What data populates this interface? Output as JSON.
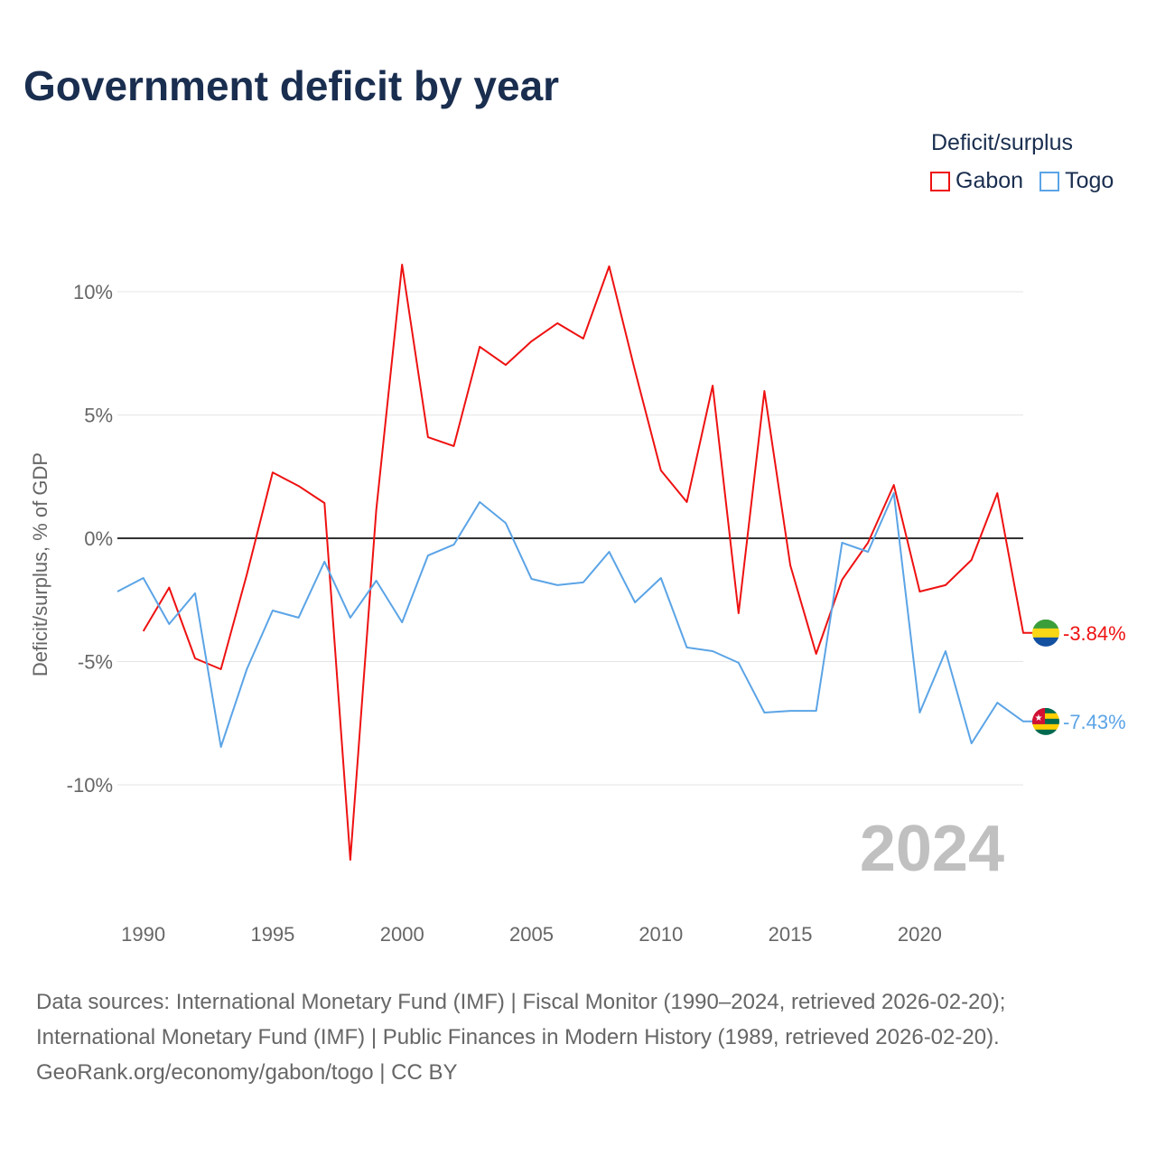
{
  "title": "Government deficit by year",
  "legend": {
    "title": "Deficit/surplus",
    "items": [
      {
        "name": "Gabon",
        "color": "#ee1111"
      },
      {
        "name": "Togo",
        "color": "#5ba4e6"
      }
    ]
  },
  "source_lines": [
    "Data sources: International Monetary Fund (IMF) | Fiscal Monitor (1990–2024, retrieved 2026-02-20);",
    "International Monetary Fund (IMF) | Public Finances in Modern History (1989, retrieved 2026-02-20).",
    "GeoRank.org/economy/gabon/togo | CC BY"
  ],
  "chart_data": {
    "type": "line",
    "title": "Government deficit by year",
    "xlabel": "",
    "ylabel": "Deficit/surplus, % of GDP",
    "xlim": [
      1989,
      2024
    ],
    "ylim": [
      -14,
      12
    ],
    "xticks": [
      1990,
      1995,
      2000,
      2005,
      2010,
      2015,
      2020
    ],
    "yticks": [
      {
        "v": 10,
        "label": "10%"
      },
      {
        "v": 5,
        "label": "5%"
      },
      {
        "v": 0,
        "label": "0%"
      },
      {
        "v": -5,
        "label": "-5%"
      },
      {
        "v": -10,
        "label": "-10%"
      }
    ],
    "year_label": "2024",
    "legend_position": "top-right",
    "series": [
      {
        "name": "Gabon",
        "color": "#ee1111",
        "start_year": 1990,
        "end_label": "-3.84%",
        "values": [
          -3.77,
          -2.0,
          -4.87,
          -5.31,
          -1.47,
          2.67,
          2.12,
          1.43,
          -13.04,
          1.14,
          11.1,
          4.1,
          3.74,
          7.77,
          7.03,
          7.99,
          8.72,
          8.1,
          11.03,
          6.8,
          2.75,
          1.47,
          6.19,
          -3.04,
          5.97,
          -1.1,
          -4.69,
          -1.68,
          -0.18,
          2.16,
          -2.16,
          -1.9,
          -0.88,
          1.83,
          -3.84
        ]
      },
      {
        "name": "Togo",
        "color": "#5ba4e6",
        "start_year": 1989,
        "end_label": "-7.43%",
        "values": [
          -2.16,
          -1.61,
          -3.48,
          -2.23,
          -8.46,
          -5.31,
          -2.93,
          -3.22,
          -0.95,
          -3.22,
          -1.72,
          -3.41,
          -0.7,
          -0.26,
          1.47,
          0.62,
          -1.65,
          -1.9,
          -1.79,
          -0.55,
          -2.6,
          -1.61,
          -4.43,
          -4.58,
          -5.05,
          -7.07,
          -7.0,
          -7.0,
          -0.18,
          -0.55,
          1.83,
          -7.07,
          -4.58,
          -8.32,
          -6.67,
          -7.43
        ]
      }
    ]
  }
}
